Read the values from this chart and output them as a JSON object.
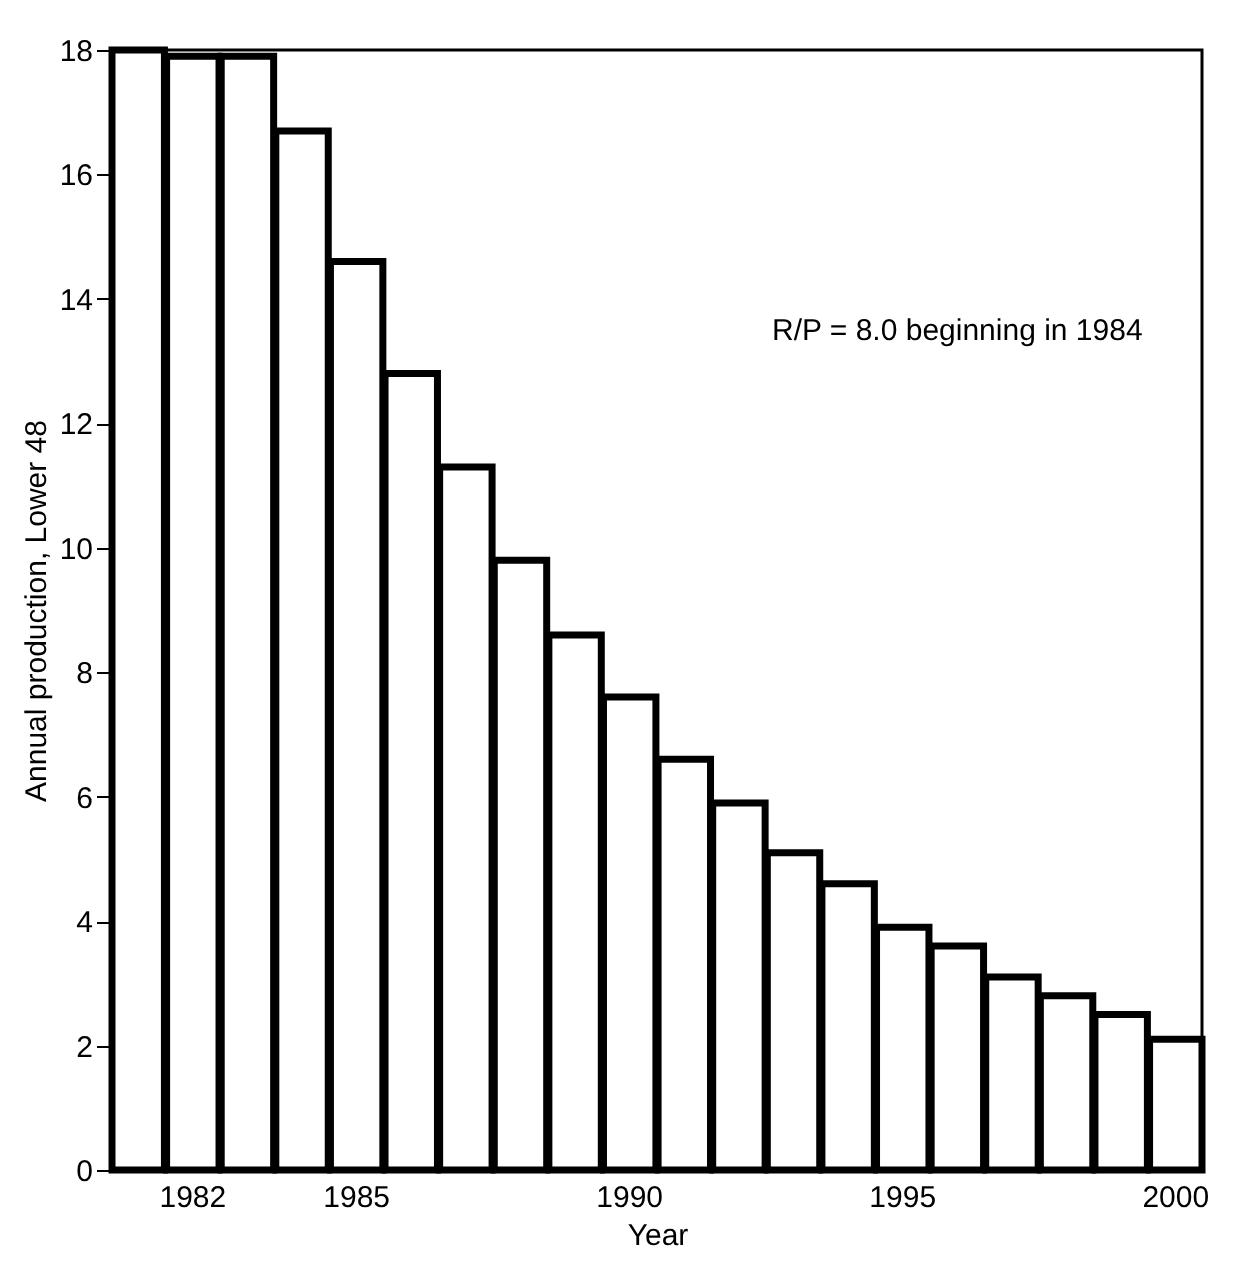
{
  "chart_data": {
    "type": "bar",
    "xlabel": "Year",
    "ylabel": "Annual production, Lower 48",
    "categories": [
      null,
      "1982",
      null,
      null,
      "1985",
      null,
      null,
      null,
      null,
      "1990",
      null,
      null,
      null,
      null,
      "1995",
      null,
      null,
      null,
      null,
      "2000"
    ],
    "values": [
      18.0,
      17.9,
      17.9,
      16.7,
      14.6,
      12.8,
      11.3,
      9.8,
      8.6,
      7.6,
      6.6,
      5.9,
      5.1,
      4.6,
      3.9,
      3.6,
      3.1,
      2.8,
      2.5,
      2.1
    ],
    "color": "#000000",
    "ylim": [
      0,
      18
    ],
    "yticks": [
      0,
      2,
      4,
      6,
      8,
      10,
      12,
      14,
      16,
      18
    ],
    "annotations": [
      "R/P = 8.0 beginning in 1984"
    ]
  }
}
